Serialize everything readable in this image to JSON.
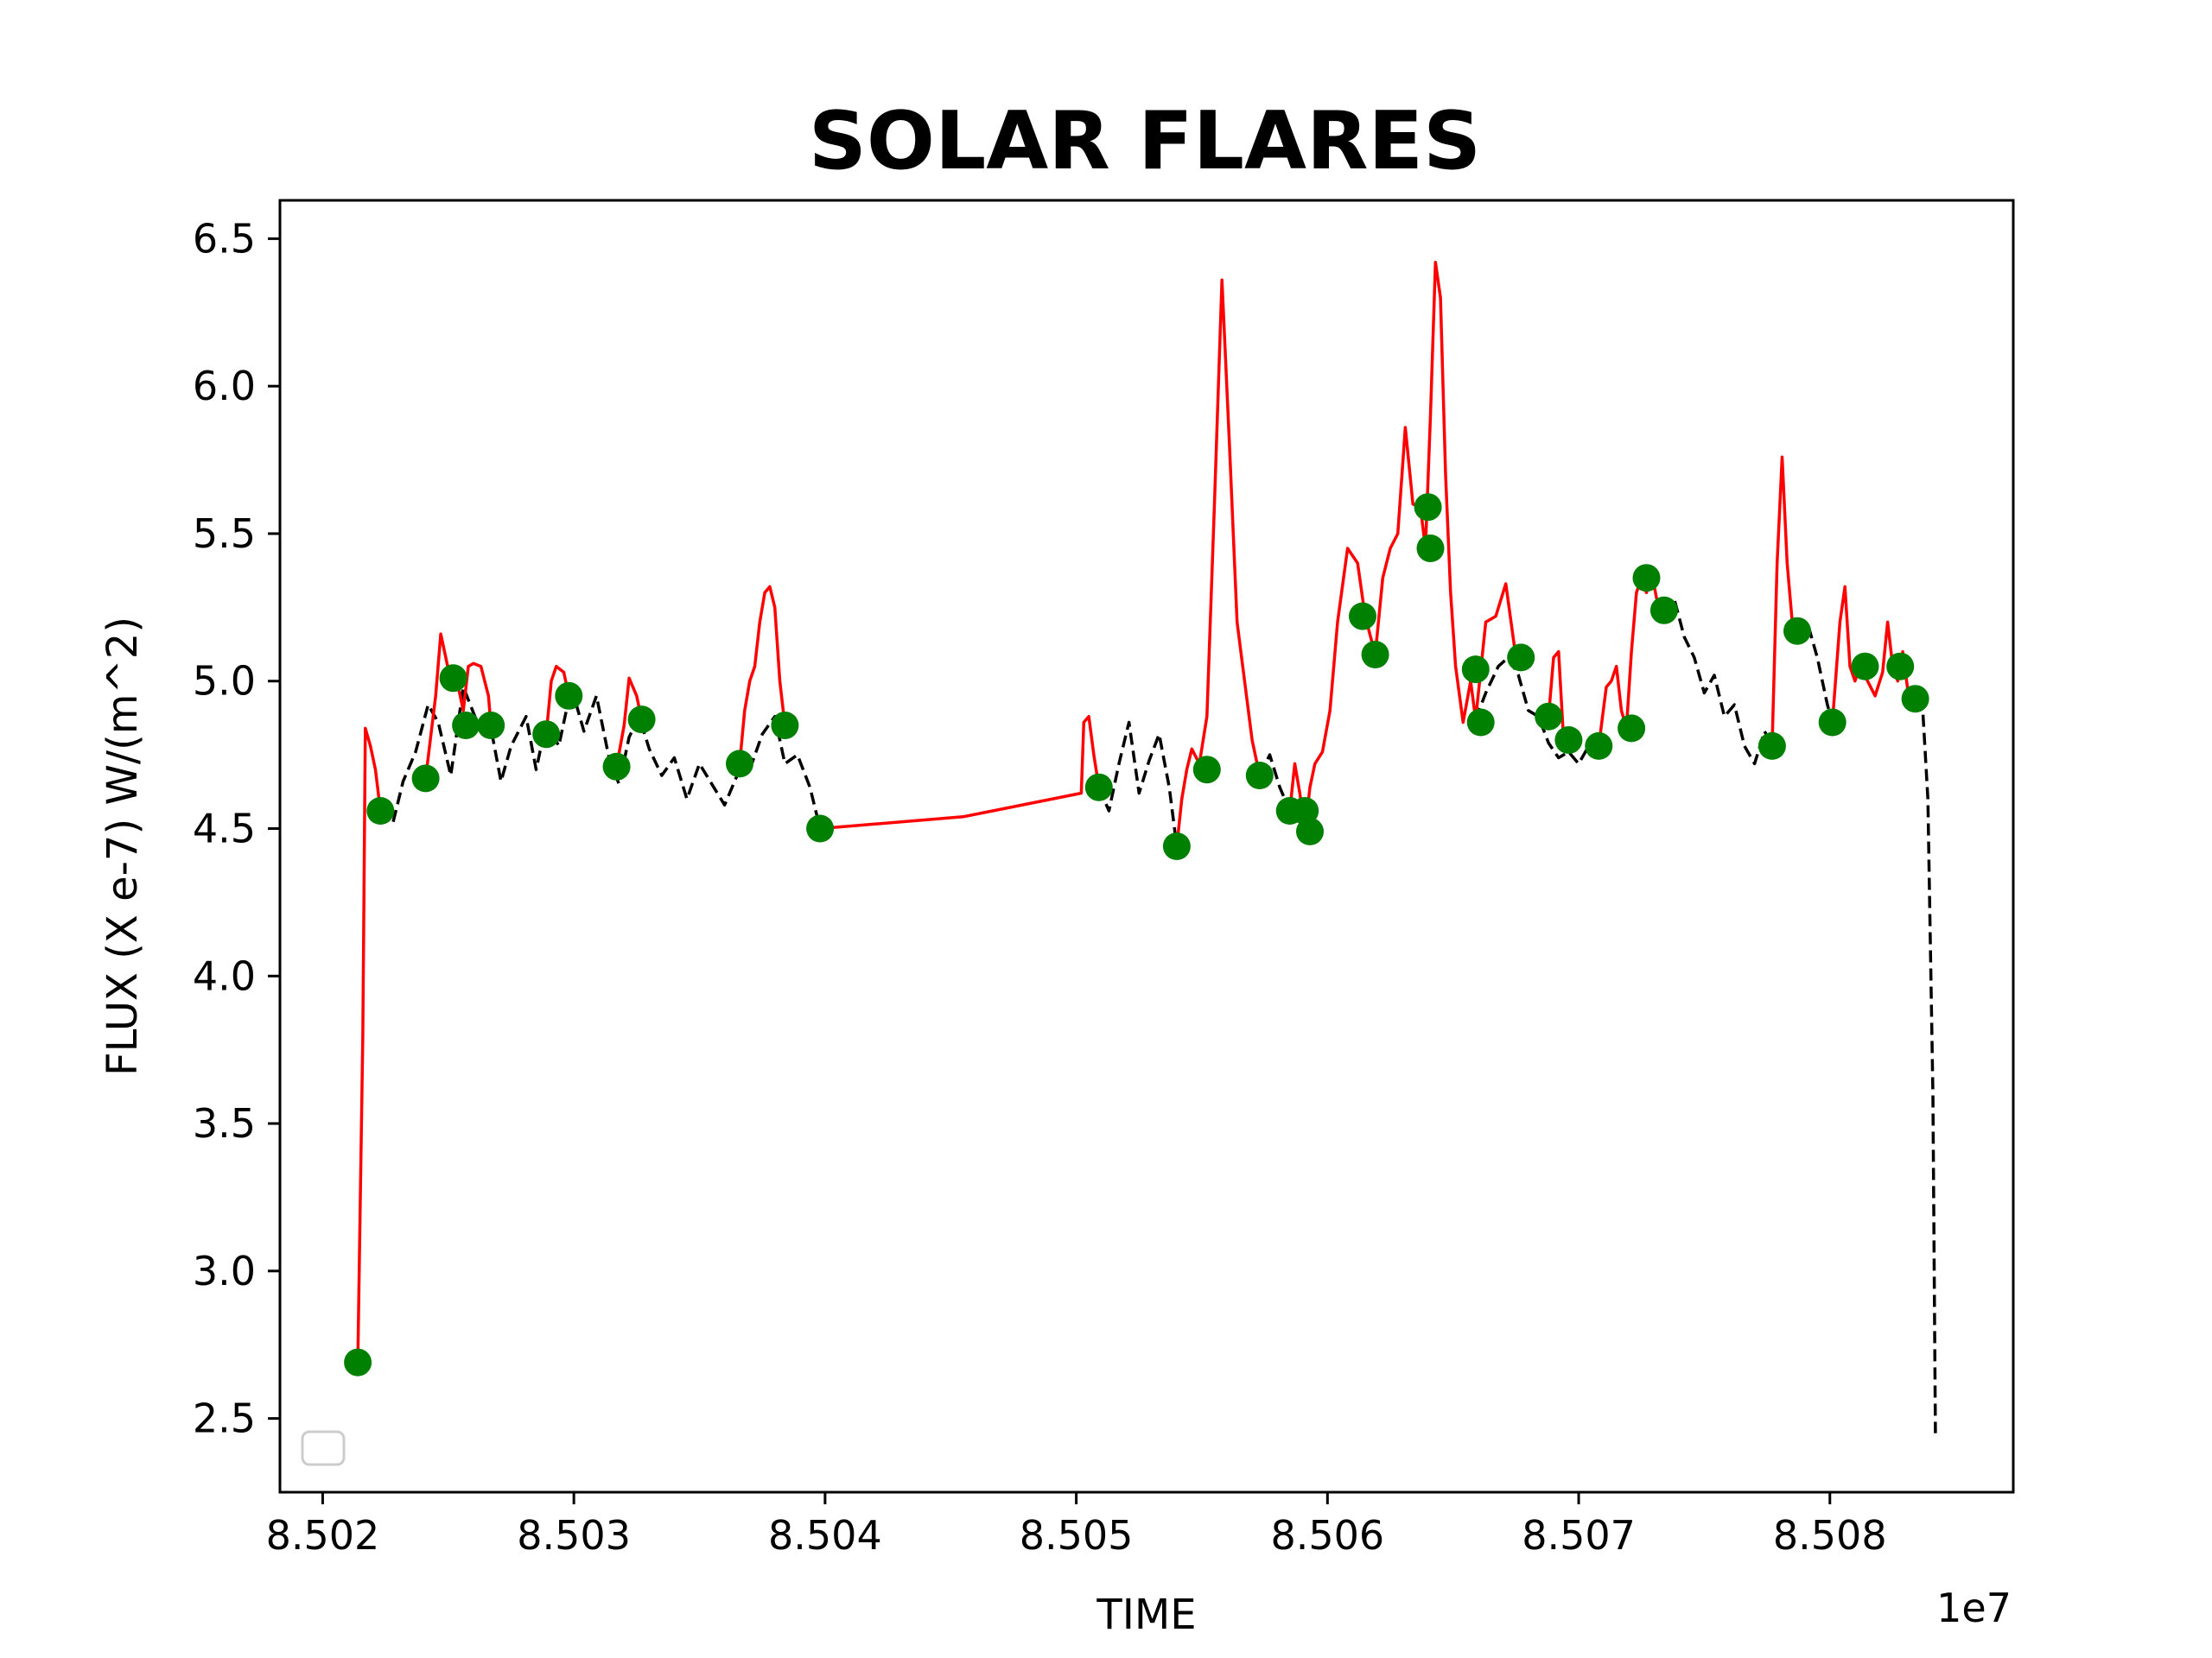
{
  "chart_data": {
    "type": "line",
    "title": "SOLAR FLARES",
    "xlabel": "TIME",
    "ylabel": "FLUX (X e-7) W/(m^2)",
    "x_offset_label": "1e7",
    "xlim": [
      8.50183,
      8.50873
    ],
    "ylim": [
      2.25,
      6.63
    ],
    "x_ticks": [
      8.502,
      8.503,
      8.504,
      8.505,
      8.506,
      8.507,
      8.508
    ],
    "x_tick_labels": [
      "8.502",
      "8.503",
      "8.504",
      "8.505",
      "8.506",
      "8.507",
      "8.508"
    ],
    "y_ticks": [
      2.5,
      3.0,
      3.5,
      4.0,
      4.5,
      5.0,
      5.5,
      6.0,
      6.5
    ],
    "y_tick_labels": [
      "2.5",
      "3.0",
      "3.5",
      "4.0",
      "4.5",
      "5.0",
      "5.5",
      "6.0",
      "6.5"
    ],
    "legend": {
      "placement": "lower-left",
      "entries": []
    },
    "colors": {
      "flare": "#ff0000",
      "background": "#000000",
      "marker": "#008000"
    },
    "series": [
      {
        "style": "dashed",
        "color": "#000000",
        "x": [
          8.50223,
          8.50228,
          8.50232,
          8.50237,
          8.50242,
          8.50246,
          8.50251,
          8.50256,
          8.50262,
          8.50267,
          8.50271,
          8.50275,
          8.50281,
          8.50285,
          8.50289,
          8.50294,
          8.50299,
          8.50304,
          8.50309,
          8.50314,
          8.50318,
          8.50322,
          8.50326,
          8.5033,
          8.50335,
          8.5034,
          8.50345,
          8.5035,
          8.50355,
          8.5036,
          8.50365,
          8.5037,
          8.50375,
          8.5038,
          8.50384,
          8.50389,
          8.50394,
          8.50398
        ],
        "y": [
          4.56,
          4.52,
          4.66,
          4.76,
          4.92,
          4.86,
          4.68,
          4.98,
          4.85,
          4.84,
          4.66,
          4.78,
          4.88,
          4.7,
          4.86,
          4.78,
          4.98,
          4.83,
          4.95,
          4.74,
          4.65,
          4.81,
          4.88,
          4.77,
          4.68,
          4.74,
          4.6,
          4.72,
          4.65,
          4.58,
          4.68,
          4.7,
          4.82,
          4.88,
          4.72,
          4.75,
          4.64,
          4.5
        ]
      },
      {
        "style": "dashed",
        "color": "#000000",
        "x": [
          8.50509,
          8.50513,
          8.50517,
          8.50521,
          8.50525,
          8.50529,
          8.50533,
          8.50537,
          8.5054
        ],
        "y": [
          4.64,
          4.56,
          4.72,
          4.86,
          4.62,
          4.73,
          4.82,
          4.64,
          4.44
        ]
      },
      {
        "style": "dashed",
        "color": "#000000",
        "x": [
          8.50573,
          8.50577,
          8.50581,
          8.50585
        ],
        "y": [
          4.68,
          4.75,
          4.64,
          4.56
        ]
      },
      {
        "style": "dashed",
        "color": "#000000",
        "x": [
          8.50659,
          8.50663,
          8.50668,
          8.50672,
          8.50676,
          8.5068,
          8.50684,
          8.50688,
          8.50692,
          8.50696,
          8.507,
          8.50704
        ],
        "y": [
          4.87,
          4.96,
          5.05,
          5.08,
          5.02,
          4.9,
          4.88,
          4.79,
          4.74,
          4.76,
          4.72,
          4.78
        ]
      },
      {
        "style": "dashed",
        "color": "#000000",
        "x": [
          8.50734,
          8.50738,
          8.50742,
          8.50746,
          8.5075,
          8.50754,
          8.50758,
          8.50762,
          8.50766,
          8.5077,
          8.50774,
          8.50777
        ],
        "y": [
          5.24,
          5.28,
          5.15,
          5.08,
          4.96,
          5.02,
          4.88,
          4.92,
          4.78,
          4.72,
          4.83,
          4.78
        ]
      },
      {
        "style": "dashed",
        "color": "#000000",
        "x": [
          8.50787,
          8.50791,
          8.50795,
          8.50799,
          8.50801
        ],
        "y": [
          5.17,
          5.2,
          5.08,
          4.92,
          4.86
        ]
      },
      {
        "style": "dashed",
        "color": "#000000",
        "x": [
          8.50834,
          8.50837,
          8.50839,
          8.50841,
          8.50842
        ],
        "y": [
          4.94,
          4.9,
          4.6,
          3.6,
          2.45
        ]
      },
      {
        "style": "solid",
        "color": "#ff0000",
        "x": [
          8.50214,
          8.50216,
          8.50217,
          8.50219,
          8.50221,
          8.50223
        ],
        "y": [
          2.69,
          3.8,
          4.84,
          4.78,
          4.7,
          4.56
        ]
      },
      {
        "style": "solid",
        "color": "#ff0000",
        "x": [
          8.50241,
          8.50245,
          8.50247,
          8.50249,
          8.50251,
          8.50253,
          8.50256,
          8.50258,
          8.5026,
          8.50263,
          8.50266,
          8.50267
        ],
        "y": [
          4.67,
          4.95,
          5.16,
          5.08,
          5.0,
          5.02,
          4.9,
          5.05,
          5.06,
          5.05,
          4.95,
          4.85
        ]
      },
      {
        "style": "solid",
        "color": "#ff0000",
        "x": [
          8.50289,
          8.50291,
          8.50293,
          8.50296,
          8.50298
        ],
        "y": [
          4.82,
          5.0,
          5.05,
          5.03,
          4.95
        ]
      },
      {
        "style": "solid",
        "color": "#ff0000",
        "x": [
          8.50317,
          8.5032,
          8.50322,
          8.50325,
          8.50327
        ],
        "y": [
          4.71,
          4.85,
          5.01,
          4.95,
          4.87
        ]
      },
      {
        "style": "solid",
        "color": "#ff0000",
        "x": [
          8.50366,
          8.50368,
          8.5037,
          8.50372,
          8.50374,
          8.50376,
          8.50378,
          8.5038,
          8.50382,
          8.50384
        ],
        "y": [
          4.72,
          4.9,
          5.0,
          5.05,
          5.2,
          5.3,
          5.32,
          5.25,
          5.0,
          4.85
        ]
      },
      {
        "style": "solid",
        "color": "#ff0000",
        "x": [
          8.50398,
          8.50455,
          8.50502,
          8.50503,
          8.50505,
          8.50507,
          8.50509
        ],
        "y": [
          4.5,
          4.54,
          4.62,
          4.86,
          4.88,
          4.75,
          4.64
        ]
      },
      {
        "style": "solid",
        "color": "#ff0000",
        "x": [
          8.5054,
          8.50542,
          8.50544,
          8.50546,
          8.50549,
          8.50552,
          8.50555,
          8.50558,
          8.50561,
          8.50564,
          8.50567,
          8.5057,
          8.50573
        ],
        "y": [
          4.44,
          4.6,
          4.7,
          4.77,
          4.72,
          4.88,
          5.6,
          6.36,
          5.8,
          5.2,
          5.0,
          4.8,
          4.68
        ]
      },
      {
        "style": "solid",
        "color": "#ff0000",
        "x": [
          8.50585,
          8.50587,
          8.50589,
          8.50591,
          8.50593,
          8.50595,
          8.50598,
          8.50601,
          8.50604,
          8.50608,
          8.50612,
          8.50615,
          8.50619,
          8.50622,
          8.50625,
          8.50628,
          8.50631,
          8.50634,
          8.50637,
          8.50639,
          8.50641,
          8.50643,
          8.50645,
          8.50647,
          8.50649,
          8.50651,
          8.50654,
          8.50657,
          8.50659
        ],
        "y": [
          4.56,
          4.72,
          4.62,
          4.49,
          4.64,
          4.72,
          4.76,
          4.9,
          5.2,
          5.45,
          5.4,
          5.22,
          5.09,
          5.35,
          5.45,
          5.5,
          5.86,
          5.6,
          5.59,
          5.45,
          5.9,
          6.42,
          6.3,
          5.7,
          5.3,
          5.05,
          4.86,
          5.0,
          4.87
        ]
      },
      {
        "style": "solid",
        "color": "#ff0000",
        "x": [
          8.50659,
          8.50663,
          8.50667,
          8.50671,
          8.50675
        ],
        "y": [
          4.87,
          5.2,
          5.22,
          5.33,
          5.08
        ]
      },
      {
        "style": "solid",
        "color": "#ff0000",
        "x": [
          8.50688,
          8.5069,
          8.50692,
          8.50694
        ],
        "y": [
          4.88,
          5.08,
          5.1,
          4.8
        ]
      },
      {
        "style": "solid",
        "color": "#ff0000",
        "x": [
          8.50708,
          8.50711,
          8.50713,
          8.50715,
          8.50717,
          8.50719,
          8.50721,
          8.50723,
          8.50725,
          8.50727,
          8.50729,
          8.50731,
          8.50734
        ],
        "y": [
          4.78,
          4.98,
          5.0,
          5.05,
          4.9,
          4.84,
          5.1,
          5.3,
          5.35,
          5.3,
          5.37,
          5.28,
          5.24
        ]
      },
      {
        "style": "solid",
        "color": "#ff0000",
        "x": [
          8.50777,
          8.50779,
          8.50781,
          8.50783,
          8.50785,
          8.50787
        ],
        "y": [
          4.78,
          5.4,
          5.76,
          5.4,
          5.2,
          5.17
        ]
      },
      {
        "style": "solid",
        "color": "#ff0000",
        "x": [
          8.50801,
          8.50804,
          8.50806,
          8.50808,
          8.5081,
          8.50812,
          8.50815,
          8.50818,
          8.50821,
          8.50823,
          8.50825,
          8.50827,
          8.50829,
          8.50831,
          8.50834
        ],
        "y": [
          4.86,
          5.2,
          5.32,
          5.05,
          5.0,
          5.05,
          5.0,
          4.95,
          5.03,
          5.2,
          5.05,
          5.0,
          5.1,
          4.97,
          4.94
        ]
      },
      {
        "type": "scatter",
        "color": "#008000",
        "x": [
          8.50214,
          8.50223,
          8.50241,
          8.50252,
          8.50257,
          8.50267,
          8.50289,
          8.50298,
          8.50317,
          8.50327,
          8.50366,
          8.50384,
          8.50398,
          8.50509,
          8.5054,
          8.50552,
          8.50573,
          8.50585,
          8.50591,
          8.50593,
          8.50614,
          8.50619,
          8.5064,
          8.50641,
          8.50659,
          8.50661,
          8.50677,
          8.50688,
          8.50696,
          8.50708,
          8.50721,
          8.50727,
          8.50734,
          8.50777,
          8.50787,
          8.50801,
          8.50814,
          8.50828,
          8.50834
        ],
        "y": [
          2.69,
          4.56,
          4.67,
          5.01,
          4.85,
          4.85,
          4.82,
          4.95,
          4.71,
          4.87,
          4.72,
          4.85,
          4.5,
          4.64,
          4.44,
          4.7,
          4.68,
          4.56,
          4.56,
          4.49,
          5.22,
          5.09,
          5.59,
          5.45,
          5.04,
          4.86,
          5.08,
          4.88,
          4.8,
          4.78,
          4.84,
          5.35,
          5.24,
          4.78,
          5.17,
          4.86,
          5.05,
          5.05,
          4.94
        ]
      }
    ]
  }
}
